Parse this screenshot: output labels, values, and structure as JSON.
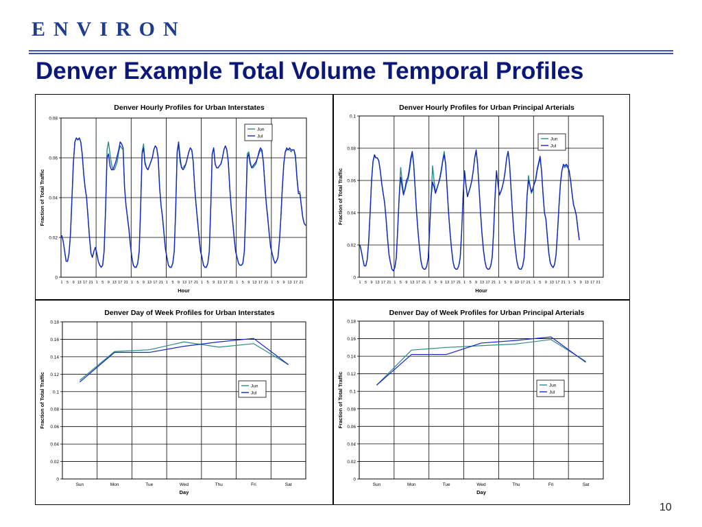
{
  "logo_text": "ENVIRON",
  "slide_title": "Denver Example Total Volume Temporal Profiles",
  "page_number": "10",
  "colors": {
    "title": "#0b1877",
    "logo": "#1f3c8f",
    "rule": "#3a4fc0",
    "jun": "#2a8a84",
    "jul": "#1224c8"
  },
  "chart_data": [
    {
      "type": "line",
      "title": "Denver Hourly Profiles for Urban Interstates",
      "xlabel": "Hour",
      "ylabel": "Fraction of Total Traffic",
      "ylim": [
        0,
        0.08
      ],
      "yticks": [
        "0",
        "0.02",
        "0.04",
        "0.06",
        "0.08"
      ],
      "x_tick_labels": [
        "1",
        "5",
        "9",
        "13",
        "17",
        "21",
        "1",
        "5",
        "9",
        "13",
        "17",
        "21",
        "1",
        "5",
        "9",
        "13",
        "17",
        "21",
        "1",
        "5",
        "9",
        "13",
        "17",
        "21",
        "1",
        "5",
        "9",
        "13",
        "17",
        "21",
        "1",
        "5",
        "9",
        "13",
        "17",
        "21",
        "1",
        "5",
        "9",
        "13",
        "17",
        "21"
      ],
      "legend": "top-right",
      "grid": true,
      "days": 7,
      "series": [
        {
          "name": "Jun",
          "color": "#2a8a84",
          "values": [
            0.021,
            0.018,
            0.013,
            0.008,
            0.008,
            0.012,
            0.022,
            0.04,
            0.058,
            0.068,
            0.07,
            0.069,
            0.07,
            0.068,
            0.062,
            0.052,
            0.045,
            0.04,
            0.03,
            0.02,
            0.012,
            0.01,
            0.013,
            0.015,
            0.012,
            0.008,
            0.006,
            0.005,
            0.006,
            0.013,
            0.034,
            0.064,
            0.068,
            0.062,
            0.057,
            0.054,
            0.054,
            0.056,
            0.058,
            0.063,
            0.066,
            0.065,
            0.064,
            0.045,
            0.036,
            0.03,
            0.024,
            0.016,
            0.01,
            0.006,
            0.005,
            0.005,
            0.007,
            0.013,
            0.035,
            0.063,
            0.067,
            0.058,
            0.055,
            0.054,
            0.056,
            0.058,
            0.06,
            0.064,
            0.066,
            0.065,
            0.06,
            0.045,
            0.036,
            0.03,
            0.022,
            0.014,
            0.01,
            0.006,
            0.005,
            0.005,
            0.007,
            0.013,
            0.034,
            0.063,
            0.066,
            0.058,
            0.055,
            0.055,
            0.056,
            0.057,
            0.06,
            0.063,
            0.065,
            0.064,
            0.058,
            0.045,
            0.036,
            0.028,
            0.02,
            0.013,
            0.01,
            0.006,
            0.005,
            0.005,
            0.007,
            0.013,
            0.035,
            0.062,
            0.065,
            0.057,
            0.055,
            0.055,
            0.056,
            0.057,
            0.06,
            0.064,
            0.066,
            0.064,
            0.058,
            0.045,
            0.035,
            0.028,
            0.02,
            0.013,
            0.01,
            0.007,
            0.006,
            0.006,
            0.007,
            0.013,
            0.034,
            0.062,
            0.063,
            0.058,
            0.055,
            0.055,
            0.056,
            0.057,
            0.06,
            0.062,
            0.064,
            0.063,
            0.058,
            0.047,
            0.037,
            0.03,
            0.022,
            0.015,
            0.012,
            0.009,
            0.007,
            0.008,
            0.01,
            0.018,
            0.03,
            0.045,
            0.057,
            0.063,
            0.064,
            0.064,
            0.064,
            0.063,
            0.064,
            0.064,
            0.06,
            0.05,
            0.043,
            0.043,
            0.036,
            0.03,
            0.027,
            0.026
          ]
        },
        {
          "name": "Jul",
          "color": "#1224c8",
          "values": [
            0.021,
            0.018,
            0.013,
            0.008,
            0.008,
            0.012,
            0.022,
            0.04,
            0.058,
            0.068,
            0.07,
            0.069,
            0.07,
            0.068,
            0.062,
            0.052,
            0.045,
            0.04,
            0.03,
            0.02,
            0.012,
            0.01,
            0.013,
            0.015,
            0.012,
            0.008,
            0.006,
            0.005,
            0.006,
            0.013,
            0.034,
            0.06,
            0.062,
            0.056,
            0.054,
            0.054,
            0.056,
            0.058,
            0.061,
            0.064,
            0.068,
            0.067,
            0.065,
            0.045,
            0.036,
            0.03,
            0.024,
            0.016,
            0.01,
            0.006,
            0.005,
            0.005,
            0.007,
            0.013,
            0.035,
            0.062,
            0.065,
            0.057,
            0.055,
            0.054,
            0.056,
            0.058,
            0.06,
            0.064,
            0.066,
            0.065,
            0.06,
            0.045,
            0.036,
            0.03,
            0.022,
            0.014,
            0.01,
            0.006,
            0.005,
            0.005,
            0.007,
            0.013,
            0.034,
            0.063,
            0.068,
            0.06,
            0.055,
            0.054,
            0.055,
            0.057,
            0.06,
            0.063,
            0.065,
            0.064,
            0.058,
            0.045,
            0.036,
            0.028,
            0.02,
            0.013,
            0.01,
            0.006,
            0.005,
            0.005,
            0.007,
            0.013,
            0.035,
            0.062,
            0.065,
            0.057,
            0.055,
            0.055,
            0.056,
            0.057,
            0.06,
            0.064,
            0.066,
            0.064,
            0.058,
            0.045,
            0.035,
            0.028,
            0.02,
            0.013,
            0.01,
            0.007,
            0.006,
            0.006,
            0.007,
            0.013,
            0.034,
            0.06,
            0.062,
            0.057,
            0.055,
            0.056,
            0.057,
            0.058,
            0.06,
            0.063,
            0.065,
            0.064,
            0.058,
            0.047,
            0.037,
            0.03,
            0.022,
            0.015,
            0.012,
            0.009,
            0.007,
            0.008,
            0.01,
            0.018,
            0.03,
            0.045,
            0.057,
            0.063,
            0.065,
            0.064,
            0.065,
            0.064,
            0.064,
            0.064,
            0.061,
            0.05,
            0.042,
            0.042,
            0.036,
            0.03,
            0.027,
            0.026
          ]
        }
      ]
    },
    {
      "type": "line",
      "title": "Denver Hourly Profiles for Urban Principal Arterials",
      "xlabel": "Hour",
      "ylabel": "Fraction of Total Traffic",
      "ylim": [
        0,
        0.1
      ],
      "yticks": [
        "0",
        "0.02",
        "0.04",
        "0.06",
        "0.08",
        "0.1"
      ],
      "x_tick_labels": [
        "1",
        "5",
        "9",
        "13",
        "17",
        "21",
        "1",
        "5",
        "9",
        "13",
        "17",
        "21",
        "1",
        "5",
        "9",
        "13",
        "17",
        "21",
        "1",
        "5",
        "9",
        "13",
        "17",
        "21",
        "1",
        "5",
        "9",
        "13",
        "17",
        "21",
        "1",
        "5",
        "9",
        "13",
        "17",
        "21",
        "1",
        "5",
        "9",
        "13",
        "17",
        "21"
      ],
      "legend": "top-right",
      "grid": true,
      "days": 7,
      "series": [
        {
          "name": "Jun",
          "color": "#2a8a84",
          "values": [
            0.02,
            0.016,
            0.011,
            0.007,
            0.007,
            0.011,
            0.022,
            0.04,
            0.06,
            0.072,
            0.075,
            0.074,
            0.074,
            0.072,
            0.066,
            0.058,
            0.052,
            0.046,
            0.036,
            0.024,
            0.014,
            0.009,
            0.005,
            0.004,
            0.006,
            0.012,
            0.03,
            0.05,
            0.068,
            0.06,
            0.052,
            0.054,
            0.058,
            0.06,
            0.065,
            0.072,
            0.077,
            0.07,
            0.055,
            0.04,
            0.028,
            0.018,
            0.01,
            0.006,
            0.005,
            0.005,
            0.007,
            0.012,
            0.03,
            0.05,
            0.069,
            0.06,
            0.053,
            0.055,
            0.058,
            0.062,
            0.067,
            0.073,
            0.078,
            0.07,
            0.055,
            0.04,
            0.028,
            0.018,
            0.01,
            0.006,
            0.005,
            0.005,
            0.007,
            0.012,
            0.028,
            0.05,
            0.066,
            0.057,
            0.05,
            0.053,
            0.056,
            0.06,
            0.066,
            0.074,
            0.078,
            0.07,
            0.055,
            0.04,
            0.027,
            0.017,
            0.01,
            0.006,
            0.005,
            0.005,
            0.007,
            0.012,
            0.028,
            0.05,
            0.066,
            0.058,
            0.051,
            0.053,
            0.056,
            0.06,
            0.066,
            0.074,
            0.078,
            0.07,
            0.055,
            0.04,
            0.027,
            0.017,
            0.01,
            0.006,
            0.005,
            0.005,
            0.007,
            0.012,
            0.028,
            0.05,
            0.063,
            0.057,
            0.052,
            0.054,
            0.058,
            0.06,
            0.066,
            0.07,
            0.074,
            0.066,
            0.052,
            0.04,
            0.036,
            0.025,
            0.015,
            0.009,
            0.007,
            0.006,
            0.008,
            0.014,
            0.028,
            0.044,
            0.058,
            0.066,
            0.069,
            0.068,
            0.069,
            0.068,
            0.066,
            0.06,
            0.052,
            0.045,
            0.042,
            0.038,
            0.03,
            0.023
          ]
        },
        {
          "name": "Jul",
          "color": "#1224c8",
          "values": [
            0.02,
            0.016,
            0.011,
            0.007,
            0.007,
            0.011,
            0.022,
            0.04,
            0.06,
            0.072,
            0.076,
            0.074,
            0.074,
            0.072,
            0.066,
            0.058,
            0.052,
            0.046,
            0.036,
            0.024,
            0.014,
            0.009,
            0.005,
            0.004,
            0.006,
            0.012,
            0.03,
            0.05,
            0.062,
            0.056,
            0.051,
            0.055,
            0.06,
            0.062,
            0.067,
            0.074,
            0.078,
            0.07,
            0.055,
            0.04,
            0.028,
            0.018,
            0.01,
            0.006,
            0.005,
            0.005,
            0.007,
            0.012,
            0.03,
            0.05,
            0.059,
            0.056,
            0.052,
            0.055,
            0.058,
            0.061,
            0.066,
            0.072,
            0.076,
            0.07,
            0.055,
            0.04,
            0.028,
            0.018,
            0.01,
            0.006,
            0.005,
            0.005,
            0.007,
            0.012,
            0.028,
            0.05,
            0.066,
            0.057,
            0.05,
            0.053,
            0.056,
            0.06,
            0.066,
            0.074,
            0.079,
            0.07,
            0.055,
            0.04,
            0.027,
            0.017,
            0.01,
            0.006,
            0.005,
            0.005,
            0.007,
            0.012,
            0.028,
            0.05,
            0.066,
            0.058,
            0.051,
            0.053,
            0.056,
            0.06,
            0.066,
            0.074,
            0.078,
            0.07,
            0.055,
            0.04,
            0.027,
            0.017,
            0.01,
            0.006,
            0.005,
            0.005,
            0.007,
            0.012,
            0.028,
            0.05,
            0.06,
            0.057,
            0.053,
            0.055,
            0.058,
            0.061,
            0.067,
            0.071,
            0.075,
            0.066,
            0.052,
            0.04,
            0.036,
            0.025,
            0.015,
            0.009,
            0.007,
            0.006,
            0.008,
            0.014,
            0.028,
            0.044,
            0.058,
            0.066,
            0.07,
            0.069,
            0.07,
            0.069,
            0.066,
            0.06,
            0.052,
            0.045,
            0.042,
            0.038,
            0.03,
            0.023
          ]
        }
      ]
    },
    {
      "type": "line",
      "title": "Denver Day of Week Profiles for Urban Interstates",
      "xlabel": "Day",
      "ylabel": "Fraction of Total Traffic",
      "ylim": [
        0,
        0.18
      ],
      "yticks": [
        "0",
        "0.02",
        "0.04",
        "0.06",
        "0.08",
        "0.1",
        "0.12",
        "0.14",
        "0.16",
        "0.18"
      ],
      "categories": [
        "Sun",
        "Mon",
        "Tue",
        "Wed",
        "Thu",
        "Fri",
        "Sat"
      ],
      "legend": "right",
      "grid": true,
      "series": [
        {
          "name": "Jun",
          "color": "#2a8a84",
          "values": [
            0.113,
            0.146,
            0.148,
            0.157,
            0.151,
            0.155,
            0.131
          ]
        },
        {
          "name": "Jul",
          "color": "#1224c8",
          "values": [
            0.111,
            0.145,
            0.145,
            0.152,
            0.157,
            0.161,
            0.131
          ]
        }
      ]
    },
    {
      "type": "line",
      "title": "Denver Day of Week Profiles for Urban Principal Arterials",
      "xlabel": "Day",
      "ylabel": "Fraction of Total Traffic",
      "ylim": [
        0,
        0.18
      ],
      "yticks": [
        "0",
        "0.02",
        "0.04",
        "0.06",
        "0.08",
        "0.1",
        "0.12",
        "0.14",
        "0.16",
        "0.18"
      ],
      "categories": [
        "Sun",
        "Mon",
        "Tue",
        "Wed",
        "Thu",
        "Fri",
        "Sat"
      ],
      "legend": "right",
      "grid": true,
      "series": [
        {
          "name": "Jun",
          "color": "#2a8a84",
          "values": [
            0.107,
            0.147,
            0.15,
            0.152,
            0.154,
            0.159,
            0.134
          ]
        },
        {
          "name": "Jul",
          "color": "#1224c8",
          "values": [
            0.107,
            0.142,
            0.142,
            0.155,
            0.158,
            0.162,
            0.133
          ]
        }
      ]
    }
  ]
}
